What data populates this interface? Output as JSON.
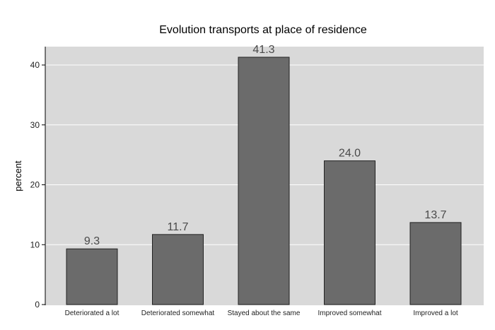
{
  "chart_data": {
    "type": "bar",
    "title": "Evolution transports at place of residence",
    "xlabel": "",
    "ylabel": "percent",
    "categories": [
      "Deteriorated a lot",
      "Deteriorated somewhat",
      "Stayed about the same",
      "Improved somewhat",
      "Improved a lot"
    ],
    "values": [
      9.3,
      11.7,
      41.3,
      24.0,
      13.7
    ],
    "data_labels": [
      "9.3",
      "11.7",
      "41.3",
      "24.0",
      "13.7"
    ],
    "ylim": [
      0,
      43
    ],
    "yticks": [
      0,
      10,
      20,
      30,
      40
    ],
    "grid": true,
    "legend": "none",
    "colors": {
      "bar_fill": "#6b6b6b",
      "bar_stroke": "#222222",
      "plot_background": "#d9d9d9",
      "gridline": "#ffffff",
      "text": "#000000",
      "data_label": "#4a4a4a"
    }
  }
}
